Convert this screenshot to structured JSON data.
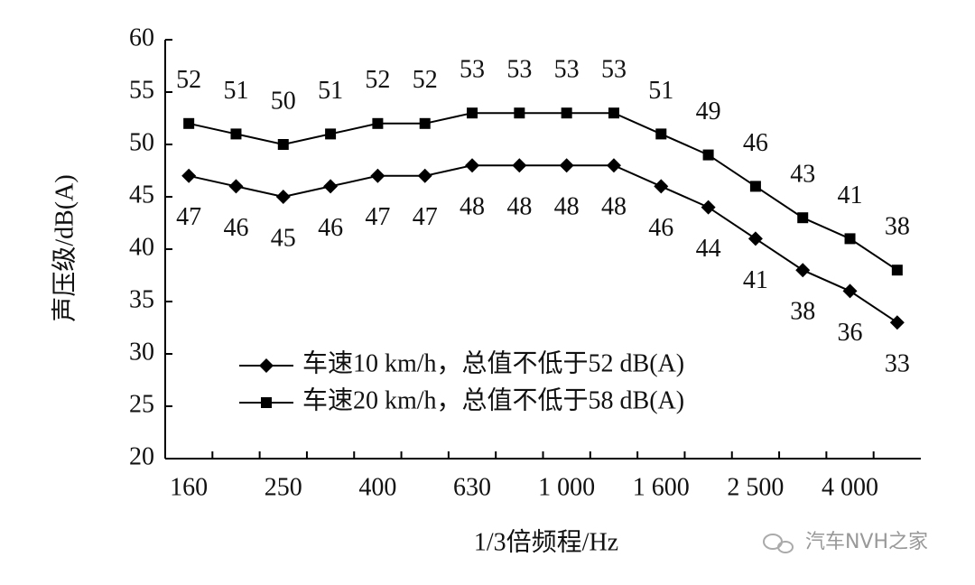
{
  "chart_data": {
    "type": "line",
    "x_label": "1/3倍频程/Hz",
    "y_label": "声压级/dB(A)",
    "categories": [
      "160",
      null,
      "250",
      null,
      "400",
      null,
      "630",
      null,
      "1 000",
      null,
      "1 600",
      null,
      "2 500",
      null,
      "4 000",
      null
    ],
    "series": [
      {
        "name": "车速10 km/h，总值不低于52 dB(A)",
        "color": "#000000",
        "marker": "diamond",
        "label_side": "below",
        "values": [
          47,
          46,
          45,
          46,
          47,
          47,
          48,
          48,
          48,
          48,
          46,
          44,
          41,
          38,
          36,
          33
        ]
      },
      {
        "name": "车速20 km/h，总值不低于58 dB(A)",
        "color": "#000000",
        "marker": "square",
        "label_side": "above",
        "values": [
          52,
          51,
          50,
          51,
          52,
          52,
          53,
          53,
          53,
          53,
          51,
          49,
          46,
          43,
          41,
          38
        ]
      }
    ],
    "ylim": [
      20,
      60
    ],
    "yticks": [
      20,
      25,
      30,
      35,
      40,
      45,
      50,
      55,
      60
    ],
    "grid": false,
    "legend": "lower left",
    "watermark": "汽车NVH之家"
  }
}
